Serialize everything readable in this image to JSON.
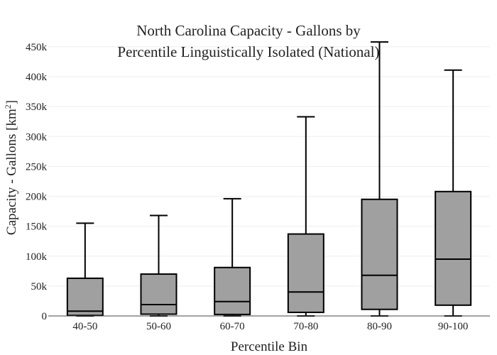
{
  "chart_data": {
    "type": "box",
    "title": "North Carolina Capacity - Gallons by Percentile Linguistically Isolated (National)",
    "title_lines": [
      "North Carolina Capacity - Gallons by",
      "Percentile Linguistically Isolated (National)"
    ],
    "xlabel": "Percentile Bin",
    "ylabel": "Capacity - Gallons  [km",
    "ylabel_superscript": "2",
    "ylabel_close": "]",
    "ylim": [
      0,
      460000
    ],
    "yticks": [
      0,
      50000,
      100000,
      150000,
      200000,
      250000,
      300000,
      350000,
      400000,
      450000
    ],
    "ytick_labels": [
      "0",
      "50k",
      "100k",
      "150k",
      "200k",
      "250k",
      "300k",
      "350k",
      "400k",
      "450k"
    ],
    "grid": true,
    "box_color": "#a0a0a0",
    "categories": [
      "40-50",
      "50-60",
      "60-70",
      "70-80",
      "80-90",
      "90-100"
    ],
    "boxes": [
      {
        "category": "40-50",
        "min": 0,
        "q1": 800,
        "median": 8000,
        "q3": 63000,
        "max": 155000
      },
      {
        "category": "50-60",
        "min": 0,
        "q1": 3000,
        "median": 19000,
        "q3": 70000,
        "max": 168000
      },
      {
        "category": "60-70",
        "min": 0,
        "q1": 2500,
        "median": 24000,
        "q3": 81000,
        "max": 196000
      },
      {
        "category": "70-80",
        "min": 0,
        "q1": 6000,
        "median": 40000,
        "q3": 137000,
        "max": 333000
      },
      {
        "category": "80-90",
        "min": 0,
        "q1": 11000,
        "median": 68000,
        "q3": 195000,
        "max": 458000
      },
      {
        "category": "90-100",
        "min": 0,
        "q1": 18000,
        "median": 95000,
        "q3": 208000,
        "max": 411000
      }
    ]
  }
}
